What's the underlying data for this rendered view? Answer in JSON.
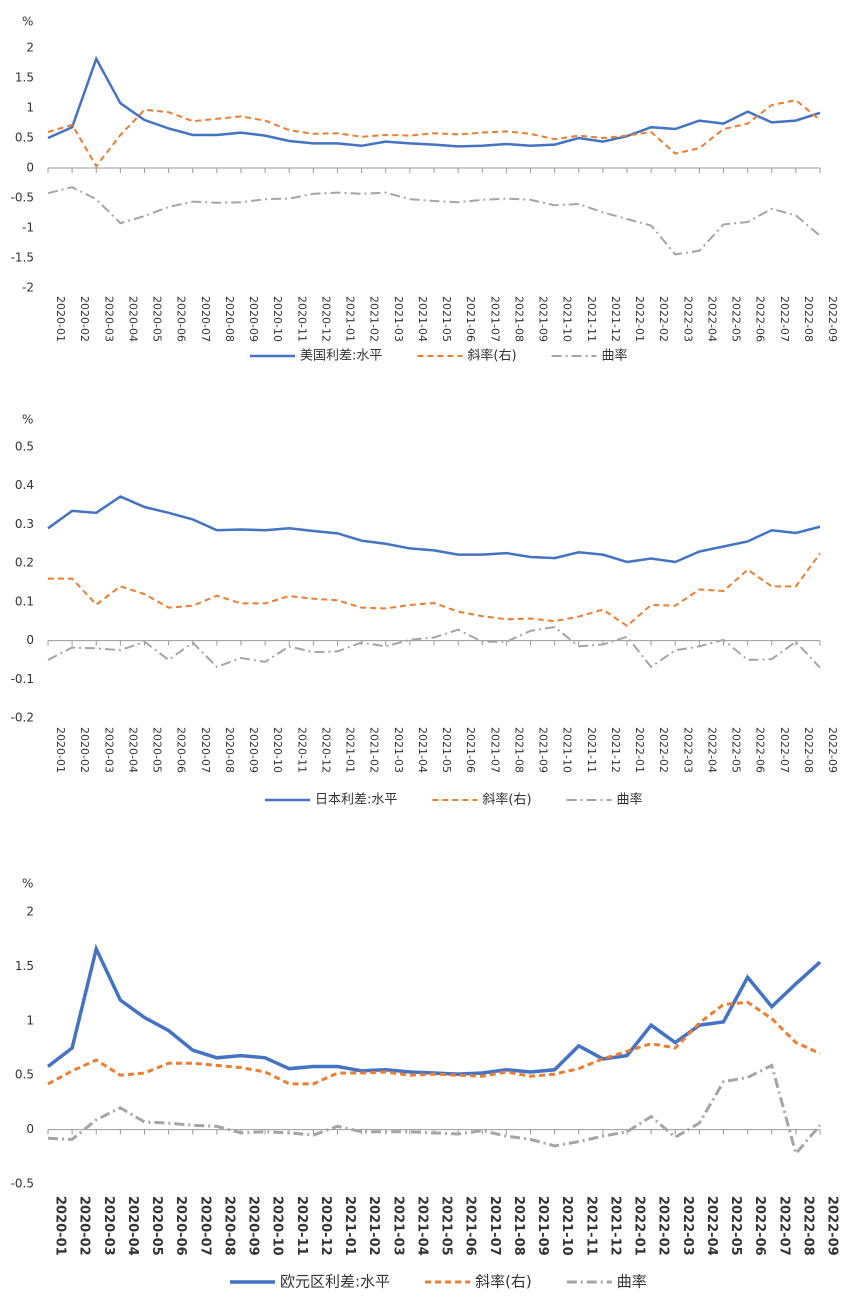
{
  "chart_data": [
    {
      "type": "line",
      "y_label": "%",
      "categories": [
        "2020-01",
        "2020-02",
        "2020-03",
        "2020-04",
        "2020-05",
        "2020-06",
        "2020-07",
        "2020-08",
        "2020-09",
        "2020-10",
        "2020-11",
        "2020-12",
        "2021-01",
        "2021-02",
        "2021-03",
        "2021-04",
        "2021-05",
        "2021-06",
        "2021-07",
        "2021-08",
        "2021-09",
        "2021-10",
        "2021-11",
        "2021-12",
        "2022-01",
        "2022-02",
        "2022-03",
        "2022-04",
        "2022-05",
        "2022-06",
        "2022-07",
        "2022-08",
        "2022-09"
      ],
      "ylim": [
        -2,
        2
      ],
      "yticks": [
        -2,
        -1.5,
        -1,
        -0.5,
        0,
        0.5,
        1,
        1.5,
        2
      ],
      "legend": "bottom",
      "series": [
        {
          "name": "美国利差:水平",
          "color": "#4472c4",
          "line_style": "solid",
          "values": [
            0.5,
            0.68,
            1.82,
            1.08,
            0.8,
            0.66,
            0.55,
            0.55,
            0.59,
            0.54,
            0.45,
            0.41,
            0.41,
            0.37,
            0.44,
            0.41,
            0.39,
            0.36,
            0.37,
            0.4,
            0.37,
            0.39,
            0.5,
            0.44,
            0.53,
            0.68,
            0.65,
            0.79,
            0.74,
            0.94,
            0.76,
            0.79,
            0.92
          ]
        },
        {
          "name": "斜率(右)",
          "color": "#ed7d31",
          "line_style": "dashed",
          "values": [
            0.6,
            0.72,
            0.03,
            0.55,
            0.97,
            0.93,
            0.78,
            0.82,
            0.86,
            0.79,
            0.63,
            0.57,
            0.58,
            0.52,
            0.55,
            0.54,
            0.58,
            0.56,
            0.59,
            0.61,
            0.57,
            0.48,
            0.54,
            0.5,
            0.54,
            0.6,
            0.24,
            0.33,
            0.65,
            0.74,
            1.05,
            1.13,
            0.8
          ]
        },
        {
          "name": "曲率",
          "color": "#a5a5a5",
          "line_style": "dashdot",
          "values": [
            -0.42,
            -0.32,
            -0.52,
            -0.92,
            -0.8,
            -0.65,
            -0.56,
            -0.58,
            -0.57,
            -0.52,
            -0.51,
            -0.43,
            -0.41,
            -0.43,
            -0.41,
            -0.52,
            -0.55,
            -0.57,
            -0.53,
            -0.51,
            -0.53,
            -0.62,
            -0.6,
            -0.74,
            -0.85,
            -0.96,
            -1.44,
            -1.38,
            -0.94,
            -0.9,
            -0.68,
            -0.79,
            -1.13
          ]
        }
      ]
    },
    {
      "type": "line",
      "y_label": "%",
      "categories": [
        "2020-01",
        "2020-02",
        "2020-03",
        "2020-04",
        "2020-05",
        "2020-06",
        "2020-07",
        "2020-08",
        "2020-09",
        "2020-10",
        "2020-11",
        "2020-12",
        "2021-01",
        "2021-02",
        "2021-03",
        "2021-04",
        "2021-05",
        "2021-06",
        "2021-07",
        "2021-08",
        "2021-09",
        "2021-10",
        "2021-11",
        "2021-12",
        "2022-01",
        "2022-02",
        "2022-03",
        "2022-04",
        "2022-05",
        "2022-06",
        "2022-07",
        "2022-08",
        "2022-09"
      ],
      "ylim": [
        -0.2,
        0.5
      ],
      "yticks": [
        -0.2,
        -0.1,
        0,
        0.1,
        0.2,
        0.3,
        0.4,
        0.5
      ],
      "legend": "bottom",
      "series": [
        {
          "name": "日本利差:水平",
          "color": "#4472c4",
          "line_style": "solid",
          "values": [
            0.29,
            0.335,
            0.33,
            0.372,
            0.345,
            0.33,
            0.313,
            0.285,
            0.287,
            0.285,
            0.29,
            0.283,
            0.277,
            0.258,
            0.25,
            0.238,
            0.233,
            0.222,
            0.222,
            0.226,
            0.216,
            0.213,
            0.228,
            0.222,
            0.203,
            0.212,
            0.203,
            0.23,
            0.243,
            0.256,
            0.285,
            0.278,
            0.294
          ]
        },
        {
          "name": "斜率(右)",
          "color": "#ed7d31",
          "line_style": "dashed",
          "values": [
            0.16,
            0.16,
            0.093,
            0.14,
            0.12,
            0.085,
            0.09,
            0.116,
            0.096,
            0.096,
            0.115,
            0.108,
            0.104,
            0.085,
            0.083,
            0.092,
            0.097,
            0.075,
            0.063,
            0.055,
            0.057,
            0.05,
            0.062,
            0.08,
            0.038,
            0.092,
            0.09,
            0.132,
            0.128,
            0.183,
            0.14,
            0.14,
            0.225
          ]
        },
        {
          "name": "曲率",
          "color": "#a5a5a5",
          "line_style": "dashdot",
          "values": [
            -0.05,
            -0.018,
            -0.02,
            -0.025,
            -0.003,
            -0.05,
            -0.005,
            -0.068,
            -0.045,
            -0.055,
            -0.015,
            -0.03,
            -0.028,
            -0.005,
            -0.015,
            0.002,
            0.008,
            0.028,
            -0.003,
            -0.003,
            0.025,
            0.035,
            -0.015,
            -0.01,
            0.01,
            -0.068,
            -0.025,
            -0.015,
            0.002,
            -0.05,
            -0.048,
            -0.003,
            -0.07
          ]
        }
      ]
    },
    {
      "type": "line",
      "y_label": "%",
      "categories": [
        "2020-01",
        "2020-02",
        "2020-03",
        "2020-04",
        "2020-05",
        "2020-06",
        "2020-07",
        "2020-08",
        "2020-09",
        "2020-10",
        "2020-11",
        "2020-12",
        "2021-01",
        "2021-02",
        "2021-03",
        "2021-04",
        "2021-05",
        "2021-06",
        "2021-07",
        "2021-08",
        "2021-09",
        "2021-10",
        "2021-11",
        "2021-12",
        "2022-01",
        "2022-02",
        "2022-03",
        "2022-04",
        "2022-05",
        "2022-06",
        "2022-07",
        "2022-08",
        "2022-09"
      ],
      "ylim": [
        -0.5,
        2
      ],
      "yticks": [
        -0.5,
        0,
        0.5,
        1,
        1.5,
        2
      ],
      "legend": "bottom",
      "series": [
        {
          "name": "欧元区利差:水平",
          "color": "#4472c4",
          "line_style": "solid",
          "values": [
            0.58,
            0.75,
            1.66,
            1.19,
            1.03,
            0.91,
            0.73,
            0.66,
            0.68,
            0.66,
            0.56,
            0.58,
            0.58,
            0.54,
            0.55,
            0.53,
            0.52,
            0.51,
            0.52,
            0.55,
            0.53,
            0.55,
            0.77,
            0.65,
            0.68,
            0.96,
            0.8,
            0.96,
            0.99,
            1.4,
            1.13,
            1.34,
            1.54
          ]
        },
        {
          "name": "斜率(右)",
          "color": "#ed7d31",
          "line_style": "dashed",
          "values": [
            0.42,
            0.54,
            0.64,
            0.5,
            0.52,
            0.61,
            0.61,
            0.59,
            0.57,
            0.53,
            0.42,
            0.42,
            0.52,
            0.52,
            0.53,
            0.5,
            0.51,
            0.5,
            0.49,
            0.53,
            0.49,
            0.51,
            0.56,
            0.65,
            0.72,
            0.79,
            0.75,
            0.98,
            1.15,
            1.17,
            1.02,
            0.8,
            0.7
          ]
        },
        {
          "name": "曲率",
          "color": "#a5a5a5",
          "line_style": "dashdot",
          "values": [
            -0.08,
            -0.09,
            0.09,
            0.2,
            0.07,
            0.06,
            0.04,
            0.03,
            -0.03,
            -0.02,
            -0.03,
            -0.05,
            0.03,
            -0.02,
            -0.02,
            -0.02,
            -0.03,
            -0.04,
            -0.01,
            -0.06,
            -0.09,
            -0.15,
            -0.11,
            -0.06,
            -0.02,
            0.12,
            -0.07,
            0.06,
            0.44,
            0.48,
            0.59,
            -0.22,
            0.04
          ]
        }
      ]
    }
  ]
}
